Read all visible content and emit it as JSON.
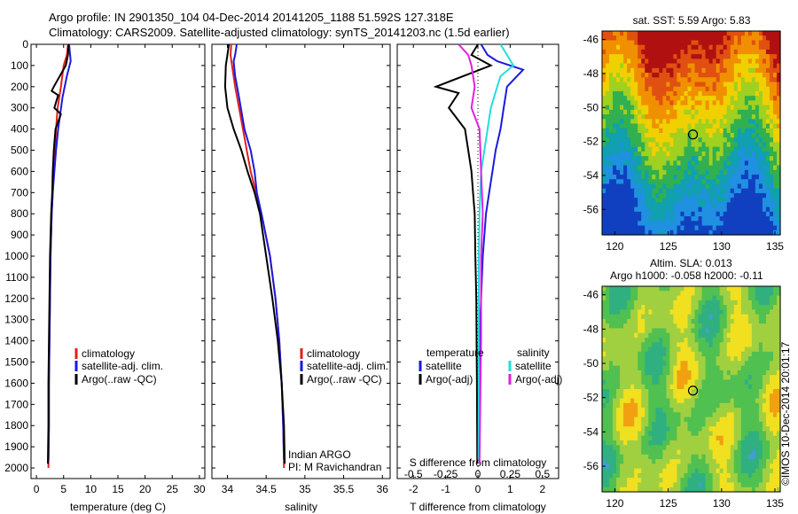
{
  "header": {
    "line1": "Argo profile: IN 2901350_104 04-Dec-2014 20141205_1188 51.592S 127.318E",
    "line2": "Climatology: CARS2009. Satellite-adjusted climatology: synTS_20141203.nc (1.5d earlier)"
  },
  "colors": {
    "climatology": "#e0201c",
    "satellite": "#1a1adc",
    "argo": "#000000",
    "satellite_salinity": "#22dede",
    "argo_salinity": "#e020e0"
  },
  "chart_data": [
    {
      "type": "line",
      "name": "temperature-profile",
      "xlabel": "temperature (deg C)",
      "ylim": [
        2050,
        0
      ],
      "xlim": [
        -1,
        31
      ],
      "xticks": [
        0,
        5,
        10,
        15,
        20,
        25,
        30
      ],
      "yticks": [
        0,
        100,
        200,
        300,
        400,
        500,
        600,
        700,
        800,
        900,
        1000,
        1100,
        1200,
        1300,
        1400,
        1500,
        1600,
        1700,
        1800,
        1900,
        2000
      ],
      "legend": [
        "climatology",
        "satellite-adj. clim.",
        "Argo(..raw -QC)"
      ],
      "series": [
        {
          "name": "climatology",
          "color_key": "climatology",
          "x": [
            5.8,
            5.6,
            5.0,
            4.5,
            3.9,
            3.6,
            3.4,
            3.2,
            3.0,
            2.8,
            2.6,
            2.5,
            2.4,
            2.3,
            2.3,
            2.2
          ],
          "y": [
            0,
            50,
            100,
            200,
            300,
            400,
            500,
            600,
            700,
            800,
            1000,
            1200,
            1400,
            1600,
            1800,
            2000
          ]
        },
        {
          "name": "satellite-adj. clim.",
          "color_key": "satellite",
          "x": [
            6.0,
            6.2,
            6.3,
            5.6,
            4.8,
            4.0,
            3.6,
            3.3,
            3.0,
            2.8,
            2.6,
            2.5,
            2.4,
            2.3,
            2.3,
            2.2
          ],
          "y": [
            0,
            50,
            80,
            150,
            250,
            400,
            500,
            600,
            700,
            800,
            1000,
            1200,
            1400,
            1600,
            1800,
            1960
          ]
        },
        {
          "name": "Argo(..raw -QC)",
          "color_key": "argo",
          "x": [
            5.9,
            5.8,
            5.4,
            3.2,
            2.8,
            4.0,
            3.3,
            4.5,
            3.5,
            3.2,
            3.0,
            2.9,
            2.7,
            2.5,
            2.4,
            2.3,
            2.2,
            2.2,
            2.1
          ],
          "y": [
            0,
            50,
            100,
            200,
            220,
            240,
            300,
            330,
            400,
            500,
            600,
            700,
            800,
            1000,
            1200,
            1400,
            1600,
            1800,
            1980
          ]
        }
      ]
    },
    {
      "type": "line",
      "name": "salinity-profile",
      "xlabel": "salinity",
      "ylim": [
        2050,
        0
      ],
      "xlim": [
        33.8,
        36.1
      ],
      "xticks": [
        34,
        34.5,
        35,
        35.5,
        36
      ],
      "xticklabels": [
        "34",
        "34.5",
        "35",
        "35.5",
        "36"
      ],
      "legend": [
        "climatology",
        "satellite-adj. clim.",
        "Argo(..raw -QC)"
      ],
      "annotations": [
        "Indian ARGO",
        "PI: M Ravichandran"
      ],
      "series": [
        {
          "name": "climatology",
          "color_key": "climatology",
          "x": [
            34.05,
            34.04,
            34.06,
            34.1,
            34.15,
            34.2,
            34.25,
            34.3,
            34.37,
            34.44,
            34.55,
            34.62,
            34.67,
            34.7,
            34.72,
            34.73
          ],
          "y": [
            0,
            50,
            100,
            200,
            300,
            400,
            500,
            600,
            700,
            800,
            1000,
            1200,
            1400,
            1600,
            1800,
            2000
          ]
        },
        {
          "name": "satellite-adj. clim.",
          "color_key": "satellite",
          "x": [
            34.12,
            34.1,
            34.08,
            34.1,
            34.15,
            34.22,
            34.3,
            34.35,
            34.38,
            34.44,
            34.55,
            34.62,
            34.67,
            34.7,
            34.72,
            34.73
          ],
          "y": [
            0,
            50,
            80,
            150,
            250,
            400,
            500,
            600,
            700,
            800,
            1000,
            1200,
            1400,
            1600,
            1800,
            1960
          ]
        },
        {
          "name": "Argo(..raw -QC)",
          "color_key": "argo",
          "x": [
            34.02,
            34.0,
            33.98,
            33.97,
            34.0,
            34.08,
            34.18,
            34.26,
            34.35,
            34.42,
            34.5,
            34.58,
            34.65,
            34.7,
            34.73,
            34.74
          ],
          "y": [
            0,
            50,
            100,
            200,
            300,
            400,
            500,
            600,
            700,
            800,
            1000,
            1200,
            1400,
            1600,
            1800,
            1980
          ]
        }
      ]
    },
    {
      "type": "line",
      "name": "difference-profile",
      "xlabel": "T difference from climatology",
      "top_axis_label": "S difference from climatology",
      "xlim": [
        -2.5,
        2.5
      ],
      "xticks": [
        -2,
        -1,
        0,
        1,
        2
      ],
      "top_xlim": [
        -0.625,
        0.625
      ],
      "top_xticks": [
        -0.5,
        -0.25,
        0,
        0.25,
        0.5
      ],
      "top_xticklabels": [
        "-0.5",
        "-0.25",
        "0",
        "0.25",
        "0.5"
      ],
      "legend_headers": [
        "temperature",
        "salinity"
      ],
      "legend": [
        "satellite",
        "Argo(-adj)",
        "satellite",
        "Argo(-adj)"
      ],
      "series": [
        {
          "name": "satellite",
          "group": "temperature",
          "color_key": "satellite",
          "x": [
            0.1,
            0.3,
            0.6,
            1.4,
            0.9,
            0.8,
            0.7,
            0.55,
            0.45,
            0.35,
            0.25,
            0.15,
            0.1,
            0.05,
            0.03,
            0.02
          ],
          "y": [
            0,
            50,
            80,
            120,
            200,
            300,
            400,
            500,
            600,
            700,
            800,
            1000,
            1200,
            1400,
            1600,
            1960
          ]
        },
        {
          "name": "Argo(-adj)",
          "group": "temperature",
          "color_key": "argo",
          "x": [
            0.0,
            -0.2,
            0.4,
            -1.3,
            -0.6,
            -0.9,
            -0.4,
            -0.3,
            -0.2,
            -0.15,
            -0.1,
            -0.08,
            -0.05,
            -0.04,
            -0.03,
            -0.02
          ],
          "y": [
            0,
            50,
            100,
            200,
            230,
            300,
            400,
            500,
            600,
            700,
            800,
            1000,
            1200,
            1400,
            1600,
            1980
          ]
        },
        {
          "name": "satellite",
          "group": "salinity",
          "color_key": "satellite_salinity",
          "x": [
            0.7,
            0.9,
            1.1,
            0.7,
            0.6,
            0.4,
            0.3,
            0.2,
            0.1,
            0.05,
            0.03,
            0.02
          ],
          "y": [
            0,
            50,
            100,
            150,
            200,
            300,
            400,
            500,
            600,
            800,
            1000,
            1960
          ]
        },
        {
          "name": "Argo(-adj)",
          "group": "salinity",
          "color_key": "argo_salinity",
          "x": [
            -0.6,
            -0.3,
            -0.2,
            -0.1,
            -0.2,
            0.05,
            0.1,
            0.15,
            0.1,
            0.1,
            0.1,
            0.08,
            0.05
          ],
          "y": [
            0,
            50,
            100,
            200,
            300,
            400,
            600,
            800,
            1000,
            1200,
            1400,
            1600,
            1980
          ]
        }
      ]
    },
    {
      "type": "heatmap",
      "name": "sst-map",
      "title": "sat. SST: 5.59 Argo: 5.83",
      "xlim": [
        118.8,
        135.5
      ],
      "ylim": [
        -57.5,
        -45.5
      ],
      "xticks": [
        120,
        125,
        130,
        135
      ],
      "yticks": [
        -46,
        -48,
        -50,
        -52,
        -54,
        -56
      ],
      "marker": {
        "lon": 127.318,
        "lat": -51.592
      },
      "colorscale": [
        "#b01010",
        "#e05010",
        "#f09000",
        "#f0d000",
        "#a0d020",
        "#30b050",
        "#10a0b0",
        "#2090e0",
        "#1040c0"
      ]
    },
    {
      "type": "heatmap",
      "name": "sla-map",
      "title_line1": "Altim. SLA: 0.013",
      "title_line2": "Argo h1000: -0.058 h2000: -0.11",
      "xlim": [
        118.8,
        135.5
      ],
      "ylim": [
        -57.5,
        -45.5
      ],
      "xticks": [
        120,
        125,
        130,
        135
      ],
      "yticks": [
        -46,
        -48,
        -50,
        -52,
        -54,
        -56
      ],
      "marker": {
        "lon": 127.318,
        "lat": -51.592
      },
      "colorscale": [
        "#e04010",
        "#f0a010",
        "#f0e020",
        "#a0d040",
        "#50c050",
        "#30b080",
        "#40a0d0"
      ]
    }
  ],
  "watermark": "©IMOS 10-Dec-2014 20:01:17"
}
